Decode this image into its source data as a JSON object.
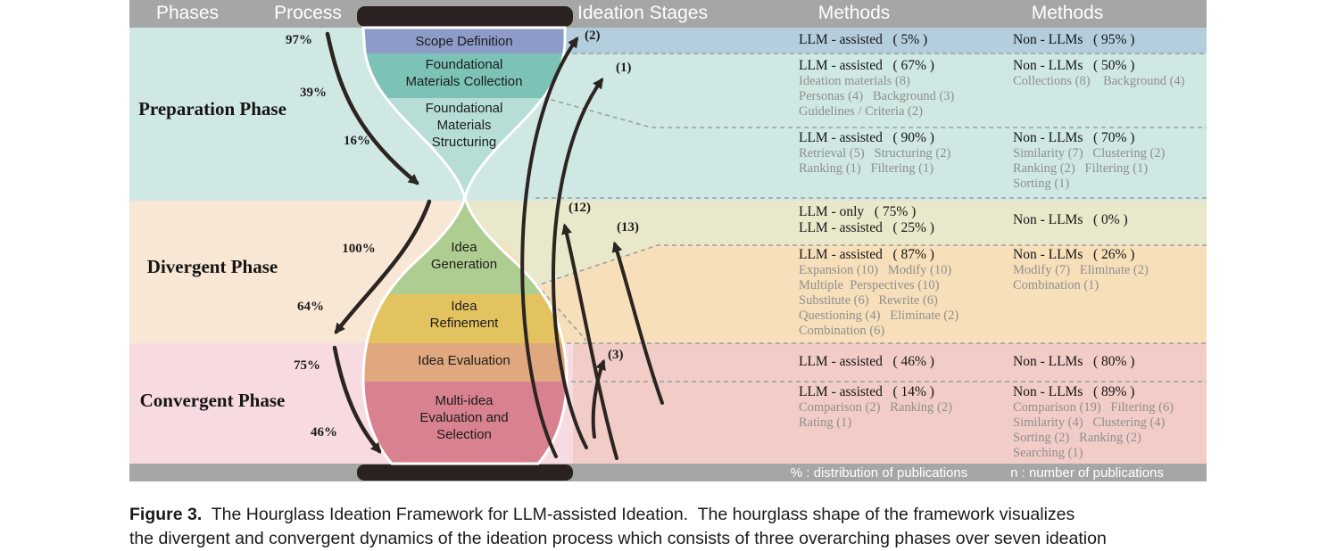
{
  "header": {
    "phases": "Phases",
    "process": "Process",
    "ideation_stages": "Ideation Stages",
    "methods_llm": "Methods",
    "methods_non_llm": "Methods"
  },
  "footer": {
    "percent_legend": "% : distribution of publications",
    "n_legend": "n : number of publications"
  },
  "phases": [
    {
      "label": "Preparation Phase"
    },
    {
      "label": "Divergent Phase"
    },
    {
      "label": "Convergent Phase"
    }
  ],
  "process_percentages": {
    "p97": "97%",
    "p39": "39%",
    "p16": "16%",
    "p100": "100%",
    "p64": "64%",
    "p75": "75%",
    "p46": "46%"
  },
  "stages": {
    "scope": "Scope Definition",
    "collection": "Foundational\nMaterials Collection",
    "structuring": "Foundational\nMaterials\nStructuring",
    "generation": "Idea\nGeneration",
    "refinement": "Idea\nRefinement",
    "evaluation": "Idea Evaluation",
    "multi": "Multi-idea\nEvaluation and\nSelection"
  },
  "arrow_labels": {
    "a2": "(2)",
    "a1": "(1)",
    "a12": "(12)",
    "a13": "(13)",
    "a3": "(3)"
  },
  "methods": {
    "rows": [
      {
        "llm": {
          "header": "LLM - assisted   ( 5% )",
          "subs": []
        },
        "non": {
          "header": "Non - LLMs   ( 95% )",
          "subs": []
        }
      },
      {
        "llm": {
          "header": "LLM - assisted   ( 67% )",
          "subs": [
            "Ideation materials (8)",
            "Personas (4)   Background (3)",
            "Guidelines / Criteria (2)"
          ]
        },
        "non": {
          "header": "Non - LLMs   ( 50% )",
          "subs": [
            "Collections (8)    Background (4)"
          ]
        }
      },
      {
        "llm": {
          "header": "LLM - assisted   ( 90% )",
          "subs": [
            "Retrieval (5)   Structuring (2)",
            "Ranking (1)   Filtering (1)"
          ]
        },
        "non": {
          "header": "Non - LLMs   ( 70% )",
          "subs": [
            "Similarity (7)   Clustering (2)",
            "Ranking (2)   Filtering (1)",
            "Sorting (1)"
          ]
        }
      },
      {
        "llm": {
          "header": "LLM - only   ( 75% )",
          "header2": "LLM - assisted   ( 25% )",
          "subs": []
        },
        "non": {
          "header": "Non - LLMs   ( 0% )",
          "subs": []
        }
      },
      {
        "llm": {
          "header": "LLM - assisted   ( 87% )",
          "subs": [
            "Expansion (10)   Modify (10)",
            "Multiple  Perspectives (10)",
            "Substitute (6)   Rewrite (6)",
            "Questioning (4)   Eliminate (2)",
            "Combination (6)"
          ]
        },
        "non": {
          "header": "Non - LLMs   ( 26% )",
          "subs": [
            "Modify (7)   Eliminate (2)",
            "Combination (1)"
          ]
        }
      },
      {
        "llm": {
          "header": "LLM - assisted   ( 46% )",
          "subs": []
        },
        "non": {
          "header": "Non - LLMs   ( 80% )",
          "subs": []
        }
      },
      {
        "llm": {
          "header": "LLM - assisted   ( 14% )",
          "subs": [
            "Comparison (2)   Ranking (2)",
            "Rating (1)"
          ]
        },
        "non": {
          "header": "Non - LLMs   ( 89% )",
          "subs": [
            "Comparison (19)   Filtering (6)",
            "Similarity (4)   Clustering (4)",
            "Sorting (2)   Ranking (2)",
            "Searching (1)"
          ]
        }
      }
    ]
  },
  "caption": {
    "tag": "Figure 3.",
    "line1": "  The Hourglass Ideation Framework for LLM-assisted Ideation.  The hourglass shape of the framework visualizes",
    "line2": "the divergent and convergent dynamics of the ideation process which consists of three overarching phases over seven ideation"
  },
  "colors": {
    "bar-gray": "#a6a6a6",
    "cap-black": "#2a2220",
    "row1-bg": "#b4cedd",
    "prep-bg": "#d0e8e4",
    "row23-bg": "#cfe8e3",
    "row4-bg": "#eae8ca",
    "row5-bg": "#f7dfba",
    "divergent-bg": "#f8e7d4",
    "conv-rows-bg": "#f2ccc7",
    "convergent-bg": "#f7dbe0",
    "scope-band": "#8d9bc8",
    "collection-band": "#7cc2b7",
    "structuring-band": "#b6ded6",
    "generation-band": "#aecd90",
    "refinement-band": "#e3c35f",
    "evaluation-band": "#e0a87e",
    "multi-band": "#d8818f",
    "arrow": "#2b2421",
    "dash": "#9aa0a0",
    "subtext": "#8f8f8f"
  }
}
